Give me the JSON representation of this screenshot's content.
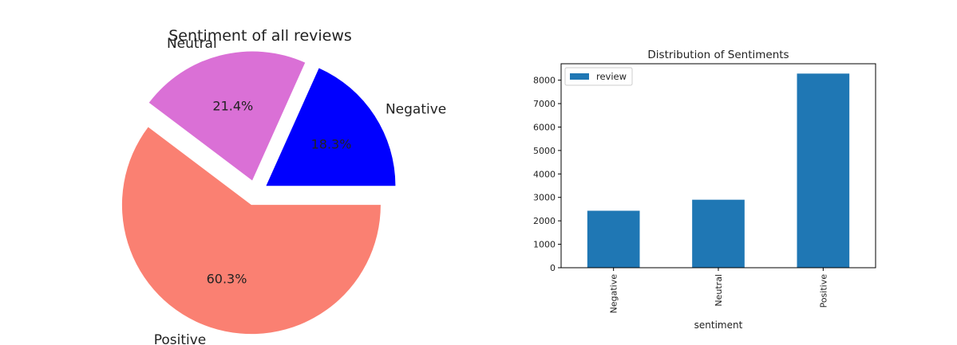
{
  "chart_data": [
    {
      "type": "pie",
      "title": "Sentiment of all reviews",
      "labels": [
        "Negative",
        "Neutral",
        "Positive"
      ],
      "values": [
        18.3,
        21.4,
        60.3
      ],
      "percent_labels": [
        "18.3%",
        "21.4%",
        "60.3%"
      ],
      "colors": [
        "#0000ff",
        "#da70d6",
        "#fa8072"
      ],
      "explode": [
        0.1,
        0.1,
        0.1
      ],
      "start_angle_deg": 0,
      "legend": false
    },
    {
      "type": "bar",
      "title": "Distribution of Sentiments",
      "categories": [
        "Negative",
        "Neutral",
        "Positive"
      ],
      "series": [
        {
          "name": "review",
          "values": [
            2430,
            2900,
            8280
          ],
          "color": "#1f77b4"
        }
      ],
      "xlabel": "sentiment",
      "ylabel": "",
      "ylim": [
        0,
        8700
      ],
      "yticks": [
        0,
        1000,
        2000,
        3000,
        4000,
        5000,
        6000,
        7000,
        8000
      ],
      "ytick_labels": [
        "0",
        "1000",
        "2000",
        "3000",
        "4000",
        "5000",
        "6000",
        "7000",
        "8000"
      ],
      "xtick_rotation_deg": 90,
      "grid": false,
      "legend_position": "top-left"
    }
  ]
}
